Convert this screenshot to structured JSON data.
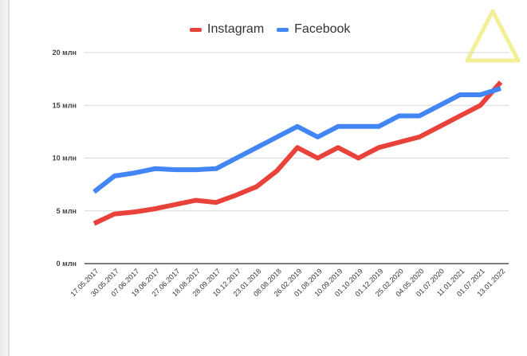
{
  "chart_data": {
    "type": "line",
    "title": "",
    "xlabel": "",
    "ylabel": "",
    "ylim": [
      0,
      20
    ],
    "yticks": [
      "0 млн",
      "5 млн",
      "10 млн",
      "15 млн",
      "20 млн"
    ],
    "legend_position": "top-center",
    "grid": true,
    "categories": [
      "17.05.2017",
      "30.05.2017",
      "07.06.2017",
      "19.06.2017",
      "27.06.2017",
      "18.08.2017",
      "28.09.2017",
      "10.12.2017",
      "23.01.2018",
      "08.08.2018",
      "26.02.2019",
      "01.08.2019",
      "10.09.2019",
      "01.10.2019",
      "01.12.2019",
      "25.02.2020",
      "04.05.2020",
      "01.07.2020",
      "11.01.2021",
      "01.07.2021",
      "13.01.2022"
    ],
    "series": [
      {
        "name": "Instagram",
        "color": "#e8423a",
        "values": [
          3.8,
          4.7,
          4.9,
          5.2,
          5.6,
          6.0,
          5.8,
          6.5,
          7.3,
          8.8,
          11.0,
          10.0,
          11.0,
          10.0,
          11.0,
          11.5,
          12.0,
          13.0,
          14.0,
          15.0,
          17.2
        ]
      },
      {
        "name": "Facebook",
        "color": "#4285f4",
        "values": [
          6.8,
          8.3,
          8.6,
          9.0,
          8.9,
          8.9,
          9.0,
          10.0,
          11.0,
          12.0,
          13.0,
          12.0,
          13.0,
          13.0,
          13.0,
          14.0,
          14.0,
          15.0,
          16.0,
          16.0,
          16.6
        ]
      }
    ]
  },
  "decor": {
    "warning_icon_color": "#f3ef96"
  }
}
